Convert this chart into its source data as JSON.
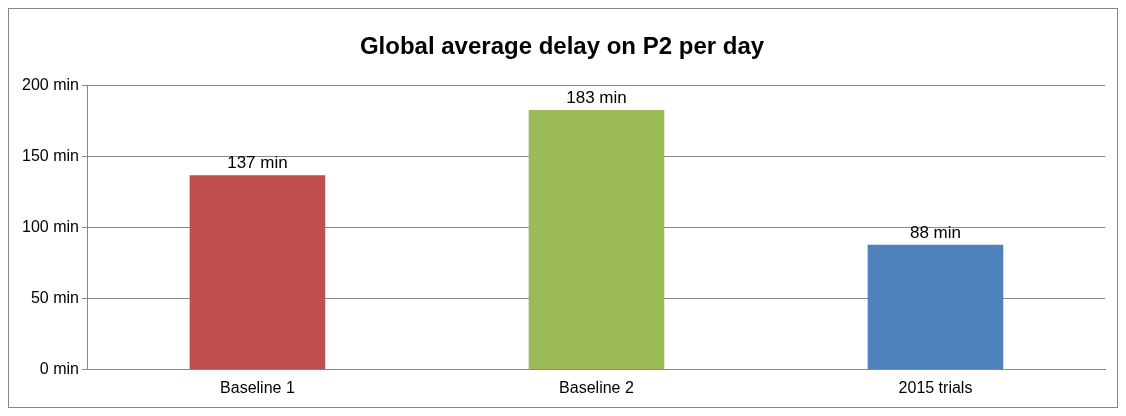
{
  "chart_data": {
    "type": "bar",
    "title": "Global average delay on P2 per day",
    "categories": [
      "Baseline 1",
      "Baseline 2",
      "2015 trials"
    ],
    "values": [
      137,
      183,
      88
    ],
    "colors": [
      "#c0504d",
      "#9bbb59",
      "#4f81bd"
    ],
    "value_labels": [
      "137 min",
      "183 min",
      "88 min"
    ],
    "ylim": [
      0,
      200
    ],
    "yticks": [
      {
        "value": 0,
        "label": "0 min"
      },
      {
        "value": 50,
        "label": "50 min"
      },
      {
        "value": 100,
        "label": "100 min"
      },
      {
        "value": 150,
        "label": "150 min"
      },
      {
        "value": 200,
        "label": "200 min"
      }
    ],
    "grid": "y",
    "legend": false
  }
}
